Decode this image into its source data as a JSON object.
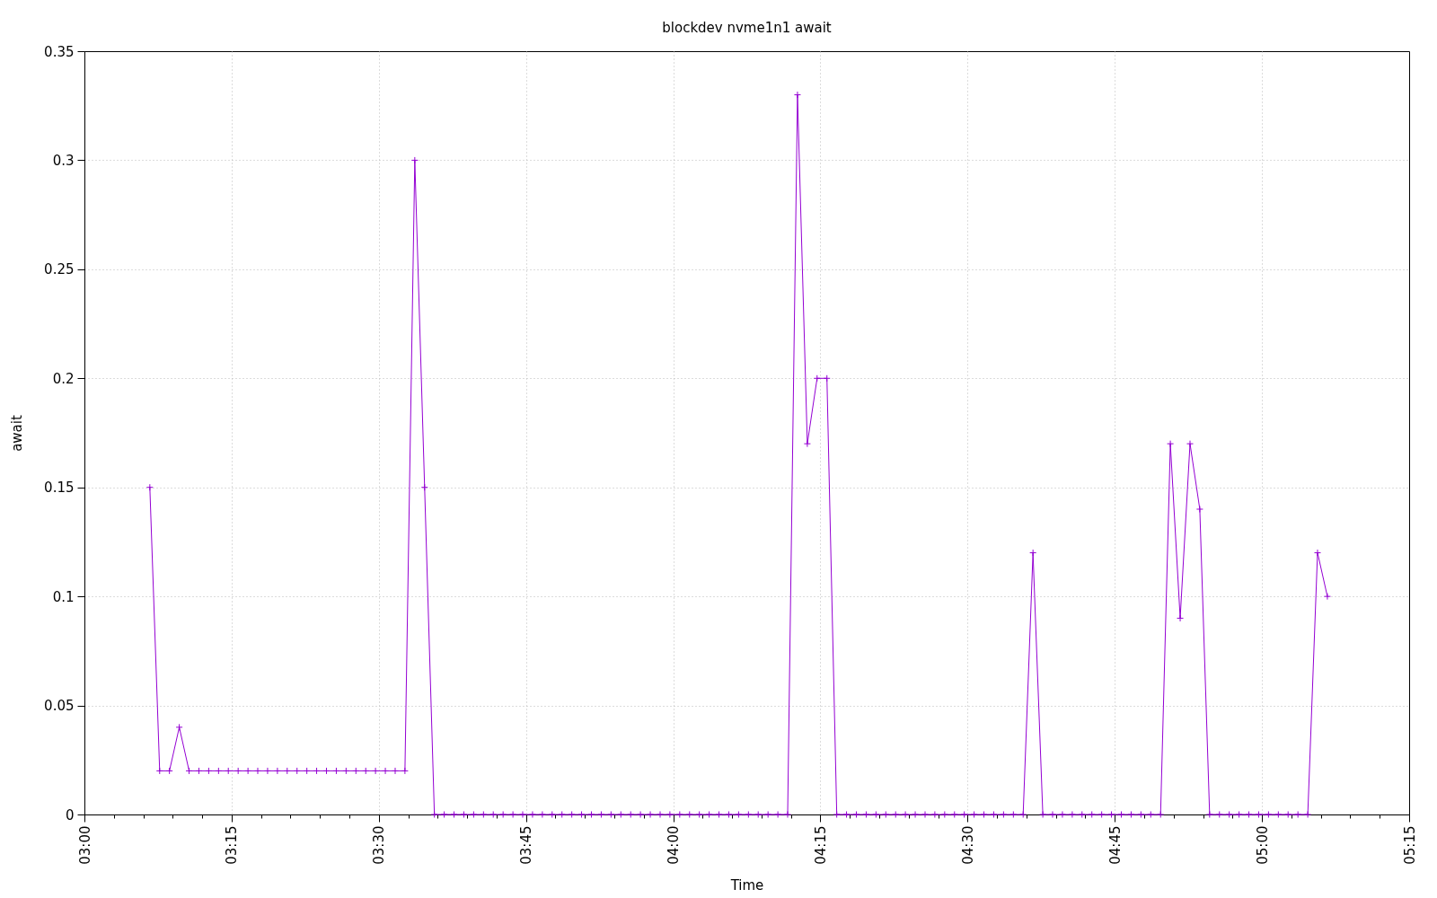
{
  "chart_data": {
    "type": "line",
    "title": "blockdev nvme1n1 await",
    "xlabel": "Time",
    "ylabel": "await",
    "x": [
      3.1111,
      3.1278,
      3.1444,
      3.1611,
      3.1778,
      3.1944,
      3.2111,
      3.2278,
      3.2444,
      3.2611,
      3.2778,
      3.2944,
      3.3111,
      3.3278,
      3.3444,
      3.3611,
      3.3778,
      3.3944,
      3.4111,
      3.4278,
      3.4444,
      3.4611,
      3.4778,
      3.4944,
      3.5111,
      3.5278,
      3.5444,
      3.5611,
      3.5778,
      3.5944,
      3.6111,
      3.6278,
      3.6444,
      3.6611,
      3.6778,
      3.6944,
      3.7111,
      3.7278,
      3.7444,
      3.7611,
      3.7778,
      3.7944,
      3.8111,
      3.8278,
      3.8444,
      3.8611,
      3.8778,
      3.8944,
      3.9111,
      3.9278,
      3.9444,
      3.9611,
      3.9778,
      3.9944,
      4.0111,
      4.0278,
      4.0444,
      4.0611,
      4.0778,
      4.0944,
      4.1111,
      4.1278,
      4.1444,
      4.1611,
      4.1778,
      4.1944,
      4.2111,
      4.2278,
      4.2444,
      4.2611,
      4.2778,
      4.2944,
      4.3111,
      4.3278,
      4.3444,
      4.3611,
      4.3778,
      4.3944,
      4.4111,
      4.4278,
      4.4444,
      4.4611,
      4.4778,
      4.4944,
      4.5111,
      4.5278,
      4.5444,
      4.5611,
      4.5778,
      4.5944,
      4.6111,
      4.6278,
      4.6444,
      4.6611,
      4.6778,
      4.6944,
      4.7111,
      4.7278,
      4.7444,
      4.7611,
      4.7778,
      4.7944,
      4.8111,
      4.8278,
      4.8444,
      4.8611,
      4.8778,
      4.8944,
      4.9111,
      4.9278,
      4.9444,
      4.9611,
      4.9778,
      4.9944,
      5.0111,
      5.0278,
      5.0444,
      5.0611,
      5.0778,
      5.0944,
      5.1111
    ],
    "values": [
      0.15,
      0.02,
      0.02,
      0.04,
      0.02,
      0.02,
      0.02,
      0.02,
      0.02,
      0.02,
      0.02,
      0.02,
      0.02,
      0.02,
      0.02,
      0.02,
      0.02,
      0.02,
      0.02,
      0.02,
      0.02,
      0.02,
      0.02,
      0.02,
      0.02,
      0.02,
      0.02,
      0.3,
      0.15,
      0,
      0,
      0,
      0,
      0,
      0,
      0,
      0,
      0,
      0,
      0,
      0,
      0,
      0,
      0,
      0,
      0,
      0,
      0,
      0,
      0,
      0,
      0,
      0,
      0,
      0,
      0,
      0,
      0,
      0,
      0,
      0,
      0,
      0,
      0,
      0,
      0,
      0.33,
      0.17,
      0.2,
      0.2,
      0,
      0,
      0,
      0,
      0,
      0,
      0,
      0,
      0,
      0,
      0,
      0,
      0,
      0,
      0,
      0,
      0,
      0,
      0,
      0,
      0.12,
      0,
      0,
      0,
      0,
      0,
      0,
      0,
      0,
      0,
      0,
      0,
      0,
      0,
      0.17,
      0.09,
      0.17,
      0.14,
      0,
      0,
      0,
      0,
      0,
      0,
      0,
      0,
      0,
      0,
      0,
      0.12,
      0.1
    ],
    "color": "#9400d3",
    "marker": "cross",
    "line_style": "solid",
    "grid": true,
    "xlim": [
      3,
      5.25
    ],
    "xticks": [
      {
        "value": 3,
        "label": "03:00"
      },
      {
        "value": 3.05,
        "label": null
      },
      {
        "value": 3.1,
        "label": null
      },
      {
        "value": 3.15,
        "label": null
      },
      {
        "value": 3.2,
        "label": null
      },
      {
        "value": 3.25,
        "label": "03:15"
      },
      {
        "value": 3.3,
        "label": null
      },
      {
        "value": 3.35,
        "label": null
      },
      {
        "value": 3.4,
        "label": null
      },
      {
        "value": 3.45,
        "label": null
      },
      {
        "value": 3.5,
        "label": "03:30"
      },
      {
        "value": 3.55,
        "label": null
      },
      {
        "value": 3.6,
        "label": null
      },
      {
        "value": 3.65,
        "label": null
      },
      {
        "value": 3.7,
        "label": null
      },
      {
        "value": 3.75,
        "label": "03:45"
      },
      {
        "value": 3.8,
        "label": null
      },
      {
        "value": 3.85,
        "label": null
      },
      {
        "value": 3.9,
        "label": null
      },
      {
        "value": 3.95,
        "label": null
      },
      {
        "value": 4,
        "label": "04:00"
      },
      {
        "value": 4.05,
        "label": null
      },
      {
        "value": 4.1,
        "label": null
      },
      {
        "value": 4.15,
        "label": null
      },
      {
        "value": 4.2,
        "label": null
      },
      {
        "value": 4.25,
        "label": "04:15"
      },
      {
        "value": 4.3,
        "label": null
      },
      {
        "value": 4.35,
        "label": null
      },
      {
        "value": 4.4,
        "label": null
      },
      {
        "value": 4.45,
        "label": null
      },
      {
        "value": 4.5,
        "label": "04:30"
      },
      {
        "value": 4.55,
        "label": null
      },
      {
        "value": 4.6,
        "label": null
      },
      {
        "value": 4.65,
        "label": null
      },
      {
        "value": 4.7,
        "label": null
      },
      {
        "value": 4.75,
        "label": "04:45"
      },
      {
        "value": 4.8,
        "label": null
      },
      {
        "value": 4.85,
        "label": null
      },
      {
        "value": 4.9,
        "label": null
      },
      {
        "value": 4.95,
        "label": null
      },
      {
        "value": 5,
        "label": "05:00"
      },
      {
        "value": 5.05,
        "label": null
      },
      {
        "value": 5.1,
        "label": null
      },
      {
        "value": 5.15,
        "label": null
      },
      {
        "value": 5.2,
        "label": null
      },
      {
        "value": 5.25,
        "label": "05:15"
      }
    ],
    "ylim": [
      0,
      0.35
    ],
    "yticks": [
      0,
      0.05,
      0.1,
      0.15,
      0.2,
      0.25,
      0.3,
      0.35
    ]
  }
}
